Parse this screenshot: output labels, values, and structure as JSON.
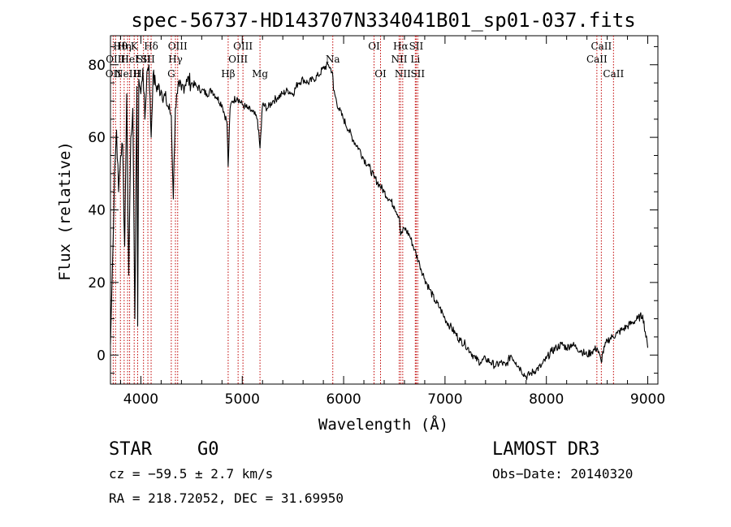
{
  "chart_data": {
    "type": "line",
    "title": "spec-56737-HD143707N334041B01_sp01-037.fits",
    "xlabel": "Wavelength (Å)",
    "ylabel": "Flux (relative)",
    "xlim": [
      3700,
      9100
    ],
    "ylim": [
      -8,
      88
    ],
    "x_ticks": [
      4000,
      5000,
      6000,
      7000,
      8000,
      9000
    ],
    "y_ticks": [
      0,
      20,
      40,
      60,
      80
    ],
    "grid": false,
    "series": [
      {
        "x": [
          3700,
          3720,
          3740,
          3760,
          3780,
          3800,
          3820,
          3840,
          3860,
          3880,
          3900,
          3920,
          3940,
          3960,
          3968,
          3980,
          4000,
          4020,
          4040,
          4060,
          4080,
          4101,
          4120,
          4150,
          4200,
          4250,
          4300,
          4320,
          4340,
          4360,
          4380,
          4400,
          4450,
          4500,
          4550,
          4600,
          4650,
          4700,
          4750,
          4800,
          4850,
          4861,
          4880,
          4900,
          4950,
          5000,
          5050,
          5100,
          5150,
          5175,
          5200,
          5250,
          5300,
          5350,
          5400,
          5450,
          5500,
          5550,
          5600,
          5650,
          5700,
          5750,
          5800,
          5850,
          5890,
          5900,
          5950,
          6000,
          6050,
          6100,
          6150,
          6200,
          6250,
          6300,
          6350,
          6400,
          6450,
          6500,
          6550,
          6563,
          6600,
          6650,
          6700,
          6750,
          6800,
          6850,
          6900,
          6950,
          7000,
          7050,
          7100,
          7150,
          7200,
          7250,
          7300,
          7350,
          7400,
          7450,
          7500,
          7550,
          7600,
          7650,
          7700,
          7750,
          7800,
          7850,
          7900,
          7950,
          8000,
          8050,
          8100,
          8150,
          8200,
          8250,
          8300,
          8350,
          8400,
          8450,
          8500,
          8542,
          8550,
          8600,
          8650,
          8700,
          8750,
          8800,
          8850,
          8900,
          8950,
          9000
        ],
        "y": [
          3,
          25,
          50,
          62,
          45,
          55,
          58,
          30,
          72,
          22,
          60,
          68,
          10,
          74,
          8,
          76,
          72,
          79,
          65,
          78,
          80,
          60,
          77,
          74,
          73,
          70,
          66,
          43,
          68,
          72,
          74,
          73,
          76,
          75,
          74,
          73,
          72,
          73,
          71,
          69,
          64,
          52,
          68,
          70,
          71,
          69,
          68,
          67,
          65,
          57,
          69,
          68,
          70,
          71,
          72,
          73,
          72,
          75,
          76,
          75,
          76,
          77,
          79,
          80,
          78,
          73,
          68,
          65,
          62,
          59,
          57,
          54,
          52,
          49,
          47,
          45,
          43,
          41,
          38,
          33,
          35,
          33,
          29,
          25,
          21,
          18,
          15,
          13,
          10,
          8,
          6,
          4,
          3,
          1,
          -1,
          -2,
          -1,
          -2,
          -3,
          -2,
          -3,
          0,
          -2,
          -4,
          -6,
          -5,
          -4,
          -3,
          -1,
          1,
          2,
          3,
          2,
          3,
          2,
          1,
          0,
          1,
          2,
          -2,
          0,
          4,
          5,
          6,
          7,
          8,
          9,
          10,
          11,
          2
        ]
      }
    ],
    "emission_lines": [
      {
        "wl": 3727,
        "label": "OII",
        "row": 2
      },
      {
        "wl": 3750,
        "label": "OIII",
        "row": 1
      },
      {
        "wl": 3798,
        "label": "Hθ",
        "row": 0
      },
      {
        "wl": 3835,
        "label": "Hη",
        "row": 0
      },
      {
        "wl": 3869,
        "label": "NeIII",
        "row": 2
      },
      {
        "wl": 3889,
        "label": "HeI",
        "row": 1
      },
      {
        "wl": 3934,
        "label": "K",
        "row": 0
      },
      {
        "wl": 3968,
        "label": "H",
        "row": 2
      },
      {
        "wl": 4026,
        "label": "SII",
        "row": 1
      },
      {
        "wl": 4101,
        "label": "Hδ",
        "row": 0
      },
      {
        "wl": 4069,
        "label": "SII",
        "row": 1
      },
      {
        "wl": 4300,
        "label": "G",
        "row": 2
      },
      {
        "wl": 4341,
        "label": "Hγ",
        "row": 1
      },
      {
        "wl": 4363,
        "label": "OIII",
        "row": 0
      },
      {
        "wl": 4861,
        "label": "Hβ",
        "row": 2
      },
      {
        "wl": 4959,
        "label": "OIII",
        "row": 1
      },
      {
        "wl": 5007,
        "label": "OIII",
        "row": 0
      },
      {
        "wl": 5175,
        "label": "Mg",
        "row": 2
      },
      {
        "wl": 5893,
        "label": "Na",
        "row": 1
      },
      {
        "wl": 6300,
        "label": "OI",
        "row": 0
      },
      {
        "wl": 6364,
        "label": "OI",
        "row": 2
      },
      {
        "wl": 6548,
        "label": "NII",
        "row": 1
      },
      {
        "wl": 6563,
        "label": "Hα",
        "row": 0
      },
      {
        "wl": 6583,
        "label": "NII",
        "row": 2
      },
      {
        "wl": 6707,
        "label": "Li",
        "row": 1
      },
      {
        "wl": 6716,
        "label": "SII",
        "row": 0
      },
      {
        "wl": 6731,
        "label": "SII",
        "row": 2
      },
      {
        "wl": 8498,
        "label": "CaII",
        "row": 1
      },
      {
        "wl": 8542,
        "label": "CaII",
        "row": 0
      },
      {
        "wl": 8662,
        "label": "CaII",
        "row": 2
      }
    ]
  },
  "info": {
    "class": "STAR",
    "subclass": "G0",
    "survey": "LAMOST DR3",
    "cz": "cz = −59.5 ± 2.7 km/s",
    "obs_date": "Obs−Date: 20140320",
    "radec": "RA = 218.72052, DEC =  31.69950"
  }
}
